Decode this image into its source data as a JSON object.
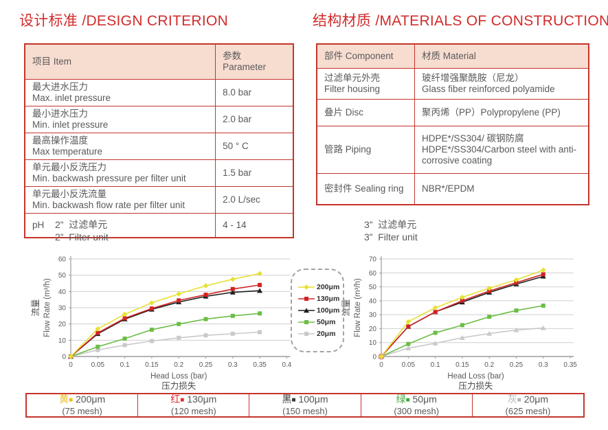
{
  "headings": {
    "design": "设计标准 /DESIGN CRITERION",
    "materials": "结构材质 /MATERIALS OF CONSTRUCTION"
  },
  "design_table": {
    "headers": [
      "项目 Item",
      "参数 Parameter"
    ],
    "rows": [
      {
        "item": [
          "最大进水压力",
          "Max. inlet pressure"
        ],
        "value": "8.0 bar"
      },
      {
        "item": [
          "最小进水压力",
          "Min. inlet pressure"
        ],
        "value": "2.0 bar"
      },
      {
        "item": [
          "最高操作温度",
          "Max temperature"
        ],
        "value": "50 ° C"
      },
      {
        "item": [
          "单元最小反洗压力",
          "Min. backwash pressure per filter unit"
        ],
        "value": "1.5 bar"
      },
      {
        "item": [
          "单元最小反洗流量",
          "Min. backwash flow rate per filter unit"
        ],
        "value": "2.0 L/sec"
      },
      {
        "item": [
          "pH"
        ],
        "value": "4 - 14"
      }
    ]
  },
  "materials_table": {
    "headers": [
      "部件 Component",
      "材质 Material"
    ],
    "rows": [
      {
        "component": [
          "过滤单元外壳",
          "Filter housing"
        ],
        "material": [
          "玻纤增强聚酰胺（尼龙）",
          "Glass fiber reinforced polyamide"
        ]
      },
      {
        "component": [
          "叠片 Disc"
        ],
        "material": [
          "聚丙烯（PP）Polypropylene (PP)"
        ]
      },
      {
        "component": [
          "管路 Piping"
        ],
        "material": [
          "HDPE*/SS304/ 碳钢防腐",
          "HDPE*/SS304/Carbon steel with anti-corrosive coating"
        ]
      },
      {
        "component": [
          "密封件 Sealing ring"
        ],
        "material": [
          "NBR*/EPDM"
        ]
      }
    ]
  },
  "chart_data": [
    {
      "type": "line",
      "title_zh": "2”  过滤单元",
      "title_en": "2”  Filter unit",
      "xlabel": "Head Loss (bar)",
      "xlabel_zh": "压力损失",
      "ylabel_zh": "流量",
      "ylabel": "Flow Rate (m³/h)",
      "xlim": [
        0,
        0.4
      ],
      "ylim": [
        0,
        60
      ],
      "x_ticks": [
        0,
        0.05,
        0.1,
        0.15,
        0.2,
        0.25,
        0.3,
        0.35,
        0.4
      ],
      "y_ticks": [
        0,
        10,
        20,
        30,
        40,
        50,
        60
      ],
      "grid": true,
      "x": [
        0,
        0.05,
        0.1,
        0.15,
        0.2,
        0.25,
        0.3,
        0.35
      ],
      "series": [
        {
          "name": "200μm",
          "color": "#e7e134",
          "marker": "diamond",
          "values": [
            0,
            17,
            26,
            33,
            38.5,
            43.5,
            47.5,
            51
          ]
        },
        {
          "name": "130μm",
          "color": "#d02424",
          "marker": "square",
          "values": [
            0,
            14.5,
            23.5,
            29.5,
            34.5,
            38,
            41.5,
            44
          ]
        },
        {
          "name": "100μm",
          "color": "#1f1f1f",
          "marker": "triangle",
          "values": [
            0,
            14,
            23,
            29,
            33.5,
            37,
            39.5,
            40.5
          ]
        },
        {
          "name": "50μm",
          "color": "#6cbd45",
          "marker": "square",
          "values": [
            0,
            6,
            11,
            16.5,
            20,
            23,
            25,
            26.5
          ]
        },
        {
          "name": "20μm",
          "color": "#c9c9c9",
          "marker": "square",
          "values": [
            0,
            4,
            7,
            9.5,
            11.5,
            13,
            14,
            15
          ]
        }
      ],
      "legend_position": "right-of-chart-dashed-box"
    },
    {
      "type": "line",
      "title_zh": "3”  过滤单元",
      "title_en": "3”  Filter unit",
      "xlabel": "Head Loss (bar)",
      "xlabel_zh": "压力损失",
      "ylabel_zh": "流量",
      "ylabel": "Flow Rate (m³/h)",
      "xlim": [
        0,
        0.35
      ],
      "ylim": [
        0,
        70
      ],
      "x_ticks": [
        0,
        0.05,
        0.1,
        0.15,
        0.2,
        0.25,
        0.3,
        0.35
      ],
      "y_ticks": [
        0,
        10,
        20,
        30,
        40,
        50,
        60,
        70
      ],
      "grid": true,
      "origin_ring": "#e0a3a3",
      "x": [
        0,
        0.05,
        0.1,
        0.15,
        0.2,
        0.25,
        0.3
      ],
      "series": [
        {
          "name": "200μm",
          "color": "#e7e134",
          "marker": "diamond",
          "values": [
            0,
            25,
            35,
            42.5,
            49,
            55,
            62
          ]
        },
        {
          "name": "130μm",
          "color": "#d02424",
          "marker": "square",
          "values": [
            0,
            21.5,
            32,
            40,
            47,
            53,
            59
          ]
        },
        {
          "name": "100μm",
          "color": "#1f1f1f",
          "marker": "triangle",
          "values": [
            0,
            21.5,
            32,
            39,
            46,
            52,
            57.5
          ]
        },
        {
          "name": "50μm",
          "color": "#6cbd45",
          "marker": "square",
          "values": [
            0,
            9,
            17,
            22.5,
            28.5,
            33,
            36.5
          ]
        },
        {
          "name": "20μm",
          "color": "#c9c9c9",
          "marker": "triangle",
          "values": [
            0,
            6,
            9.5,
            13.5,
            16.5,
            19,
            20.5
          ]
        }
      ]
    }
  ],
  "size_legend": {
    "items": [
      {
        "color_name": "黄",
        "color": "#eebc1c",
        "size": "200μm",
        "mesh": "(75 mesh)"
      },
      {
        "color_name": "红",
        "color": "#e02c2c",
        "size": "130μm",
        "mesh": "(120 mesh)"
      },
      {
        "color_name": "黑",
        "color": "#333333",
        "size": "100μm",
        "mesh": "(150 mesh)"
      },
      {
        "color_name": "绿",
        "color": "#41a541",
        "size": "50μm",
        "mesh": "(300 mesh)"
      },
      {
        "color_name": "灰",
        "color": "#b3b3b3",
        "size": "20μm",
        "mesh": "(625 mesh)"
      }
    ]
  },
  "colors": {
    "accent_red": "#d22b2b",
    "table_border_red": "#c4342c",
    "table_header_bg": "#f7dcd0",
    "body_text_gray": "#595959"
  }
}
